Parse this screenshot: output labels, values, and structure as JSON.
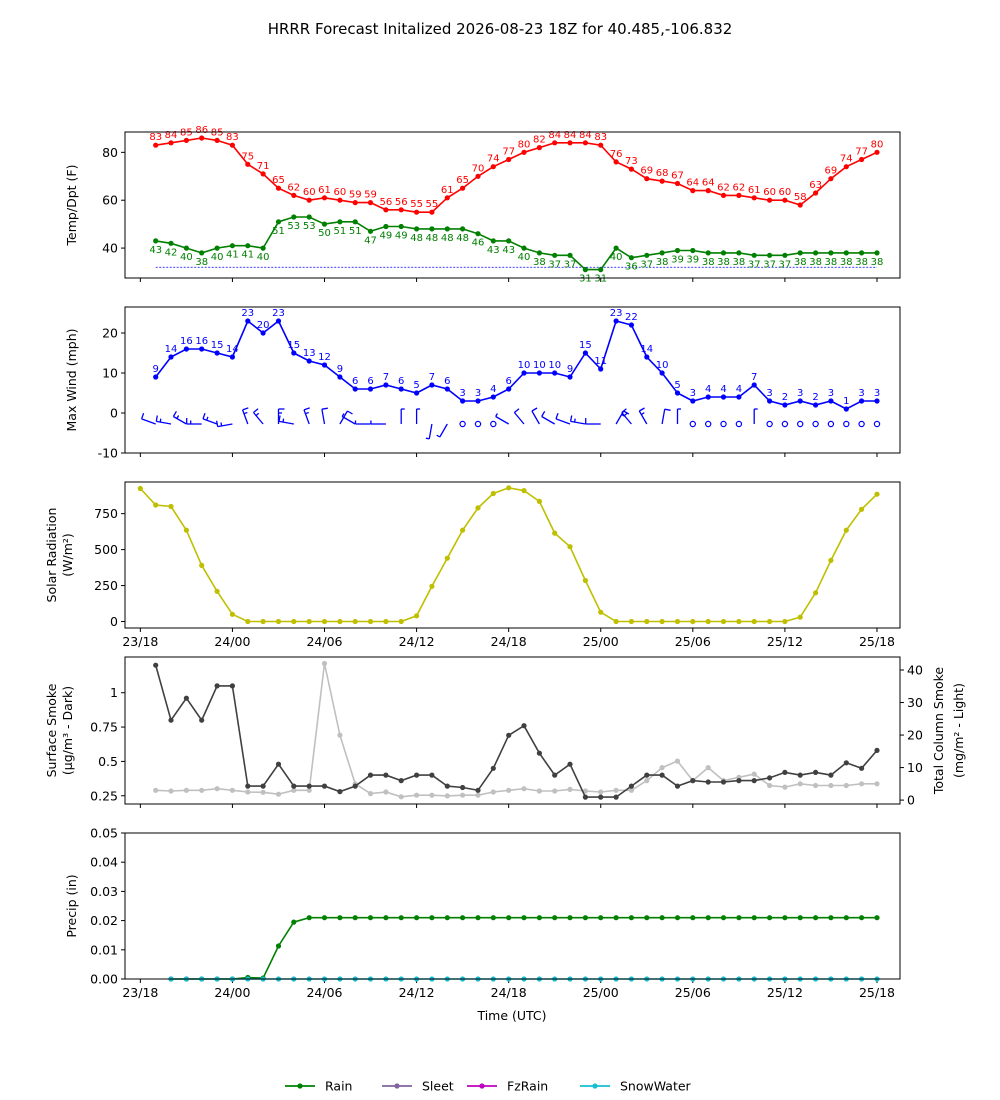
{
  "title": "HRRR Forecast Initalized 2026-08-23 18Z for 40.485,-106.832",
  "x_tick_labels": [
    "23/18",
    "24/00",
    "24/06",
    "24/12",
    "24/18",
    "25/00",
    "25/06",
    "25/12",
    "25/18"
  ],
  "x_axis_label": "Time (UTC)",
  "legend": [
    {
      "label": "Rain",
      "color": "#008000"
    },
    {
      "label": "Sleet",
      "color": "#8064a0"
    },
    {
      "label": "FzRain",
      "color": "#c000c0"
    },
    {
      "label": "SnowWater",
      "color": "#17becf"
    }
  ],
  "chart_data": [
    {
      "type": "line",
      "ylabel": "Temp/Dpt (F)",
      "x_hours": [
        1,
        2,
        3,
        4,
        5,
        6,
        7,
        8,
        9,
        10,
        11,
        12,
        13,
        14,
        15,
        16,
        17,
        18,
        19,
        20,
        21,
        22,
        23,
        24,
        25,
        26,
        27,
        28,
        29,
        30,
        31,
        32,
        33,
        34,
        35,
        36,
        37,
        38,
        39,
        40,
        41,
        42,
        43,
        44,
        45,
        46,
        47,
        48
      ],
      "ylim": [
        27.5,
        88.5
      ],
      "yticks": [
        40,
        60,
        80
      ],
      "reference_line": 32,
      "series": [
        {
          "color": "#ff0000",
          "values": [
            83,
            84,
            85,
            86,
            85,
            83,
            75,
            71,
            65,
            62,
            60,
            61,
            60,
            59,
            59,
            56,
            56,
            55,
            55,
            61,
            65,
            70,
            74,
            77,
            80,
            82,
            84,
            84,
            84,
            83,
            76,
            73,
            69,
            68,
            67,
            64,
            64,
            62,
            62,
            61,
            60,
            60,
            58,
            63,
            69,
            74,
            77,
            80
          ],
          "labels": [
            "83",
            "84",
            "85",
            "86",
            "85",
            "83",
            "75",
            "71",
            "65",
            "62",
            "60",
            "61",
            "60",
            "59",
            "59",
            "56",
            "56",
            "55",
            "55",
            "61",
            "65",
            "70",
            "74",
            "77",
            "80",
            "82",
            "84",
            "84",
            "84",
            "83",
            "76",
            "73",
            "69",
            "68",
            "67",
            "64",
            "64",
            "62",
            "62",
            "61",
            "60",
            "60",
            "58",
            "63",
            "69",
            "74",
            "77",
            "80"
          ]
        },
        {
          "color": "#008000",
          "values": [
            43,
            42,
            40,
            38,
            40,
            41,
            41,
            40,
            51,
            53,
            53,
            50,
            51,
            51,
            47,
            49,
            49,
            48,
            48,
            48,
            48,
            46,
            43,
            43,
            40,
            38,
            37,
            37,
            31,
            31,
            40,
            36,
            37,
            38,
            39,
            39,
            38,
            38,
            38,
            37,
            37,
            37,
            38,
            38,
            38,
            38,
            38,
            38
          ],
          "labels": [
            "43",
            "42",
            "40",
            "38",
            "40",
            "41",
            "41",
            "40",
            "51",
            "53",
            "53",
            "50",
            "51",
            "51",
            "47",
            "49",
            "49",
            "48",
            "48",
            "48",
            "48",
            "46",
            "43",
            "43",
            "40",
            "38",
            "37",
            "37",
            "31",
            "31",
            "40",
            "36",
            "37",
            "38",
            "39",
            "39",
            "38",
            "38",
            "38",
            "37",
            "37",
            "37",
            "38",
            "38",
            "38",
            "38",
            "38",
            "38"
          ]
        }
      ]
    },
    {
      "type": "line",
      "ylabel": "Max Wind (mph)",
      "x_hours": [
        1,
        2,
        3,
        4,
        5,
        6,
        7,
        8,
        9,
        10,
        11,
        12,
        13,
        14,
        15,
        16,
        17,
        18,
        19,
        20,
        21,
        22,
        23,
        24,
        25,
        26,
        27,
        28,
        29,
        30,
        31,
        32,
        33,
        34,
        35,
        36,
        37,
        38,
        39,
        40,
        41,
        42,
        43,
        44,
        45,
        46,
        47,
        48
      ],
      "ylim": [
        -10,
        26.5
      ],
      "yticks": [
        -10,
        0,
        10,
        20
      ],
      "series": [
        {
          "color": "#0000ff",
          "values": [
            9,
            14,
            16,
            16,
            15,
            14,
            23,
            20,
            23,
            15,
            13,
            12,
            9,
            6,
            6,
            7,
            6,
            5,
            7,
            6,
            3,
            3,
            4,
            6,
            10,
            10,
            10,
            9,
            15,
            11,
            23,
            22,
            14,
            10,
            5,
            3,
            4,
            4,
            4,
            7,
            3,
            2,
            3,
            2,
            3,
            1,
            3,
            3
          ],
          "labels": [
            "9",
            "14",
            "16",
            "16",
            "15",
            "14",
            "23",
            "20",
            "23",
            "15",
            "13",
            "12",
            "9",
            "6",
            "6",
            "7",
            "6",
            "5",
            "7",
            "6",
            "3",
            "3",
            "4",
            "6",
            "10",
            "10",
            "10",
            "9",
            "15",
            "11",
            "23",
            "22",
            "14",
            "10",
            "5",
            "3",
            "4",
            "4",
            "4",
            "7",
            "3",
            "2",
            "3",
            "2",
            "3",
            "1",
            "3",
            "3"
          ]
        }
      ],
      "barb_dir_deg": [
        290,
        280,
        300,
        270,
        290,
        260,
        340,
        320,
        0,
        280,
        340,
        350,
        30,
        300,
        270,
        270,
        0,
        0,
        190,
        210,
        0,
        0,
        310,
        300,
        320,
        330,
        300,
        290,
        280,
        270,
        30,
        320,
        330,
        10,
        0,
        0,
        0,
        0,
        50,
        0,
        0,
        0,
        0,
        0,
        0,
        0,
        300,
        290
      ]
    },
    {
      "type": "line",
      "ylabel": "Solar Radiation",
      "ylabel_line2": "(W/m²)",
      "x_hours": [
        0,
        1,
        2,
        3,
        4,
        5,
        6,
        7,
        8,
        9,
        10,
        11,
        12,
        13,
        14,
        15,
        16,
        17,
        18,
        19,
        20,
        21,
        22,
        23,
        24,
        25,
        26,
        27,
        28,
        29,
        30,
        31,
        32,
        33,
        34,
        35,
        36,
        37,
        38,
        39,
        40,
        41,
        42,
        43,
        44,
        45,
        46,
        47,
        48
      ],
      "ylim": [
        -45,
        970
      ],
      "yticks": [
        0,
        250,
        500,
        750
      ],
      "series": [
        {
          "color": "#bfbf00",
          "values": [
            925,
            810,
            800,
            635,
            390,
            210,
            50,
            0,
            0,
            0,
            0,
            0,
            0,
            0,
            0,
            0,
            0,
            0,
            40,
            245,
            440,
            635,
            790,
            890,
            930,
            910,
            835,
            615,
            520,
            285,
            65,
            0,
            0,
            0,
            0,
            0,
            0,
            0,
            0,
            0,
            0,
            0,
            0,
            30,
            200,
            425,
            635,
            780,
            885
          ]
        }
      ]
    },
    {
      "type": "line",
      "ylabel": "Surface Smoke",
      "ylabel_line2": "(μg/m³ - Dark)",
      "ylabel_right": "Total Column Smoke",
      "ylabel_right_line2": "(mg/m² - Light)",
      "x_hours": [
        1,
        2,
        3,
        4,
        5,
        6,
        7,
        8,
        9,
        10,
        11,
        12,
        13,
        14,
        15,
        16,
        17,
        18,
        19,
        20,
        21,
        22,
        23,
        24,
        25,
        26,
        27,
        28,
        29,
        30,
        31,
        32,
        33,
        34,
        35,
        36,
        37,
        38,
        39,
        40,
        41,
        42,
        43,
        44,
        45,
        46,
        47,
        48
      ],
      "ylim": [
        0.19,
        1.26
      ],
      "yticks": [
        0.25,
        0.5,
        0.75,
        1.0
      ],
      "ylim_right": [
        -1.2,
        44
      ],
      "yticks_right": [
        0,
        10,
        20,
        30,
        40
      ],
      "series": [
        {
          "color": "#404040",
          "axis": "left",
          "values": [
            1.2,
            0.8,
            0.96,
            0.8,
            1.05,
            1.05,
            0.32,
            0.32,
            0.48,
            0.32,
            0.32,
            0.32,
            0.28,
            0.32,
            0.4,
            0.4,
            0.36,
            0.4,
            0.4,
            0.32,
            0.31,
            0.29,
            0.45,
            0.69,
            0.76,
            0.56,
            0.4,
            0.48,
            0.24,
            0.24,
            0.24,
            0.32,
            0.4,
            0.4,
            0.32,
            0.36,
            0.35,
            0.35,
            0.36,
            0.36,
            0.38,
            0.42,
            0.4,
            0.42,
            0.4,
            0.49,
            0.45,
            0.58
          ]
        },
        {
          "color": "#c0c0c0",
          "axis": "right",
          "values": [
            3,
            2.8,
            3,
            3,
            3.5,
            3,
            2.5,
            2.4,
            1.8,
            3,
            3,
            42,
            20,
            5,
            2,
            2.5,
            1,
            1.5,
            1.5,
            1.3,
            1.5,
            1.5,
            2.5,
            3,
            3.5,
            2.8,
            2.8,
            3.3,
            2.8,
            2.5,
            3,
            3,
            6,
            10,
            12,
            6,
            10,
            6,
            7,
            8,
            4.5,
            4,
            5,
            4.5,
            4.5,
            4.5,
            5,
            5
          ]
        }
      ]
    },
    {
      "type": "line",
      "ylabel": "Precip (in)",
      "x_hours": [
        2,
        3,
        4,
        5,
        6,
        7,
        8,
        9,
        10,
        11,
        12,
        13,
        14,
        15,
        16,
        17,
        18,
        19,
        20,
        21,
        22,
        23,
        24,
        25,
        26,
        27,
        28,
        29,
        30,
        31,
        32,
        33,
        34,
        35,
        36,
        37,
        38,
        39,
        40,
        41,
        42,
        43,
        44,
        45,
        46,
        47,
        48
      ],
      "ylim": [
        0,
        0.05
      ],
      "yticks": [
        0.0,
        0.01,
        0.02,
        0.03,
        0.04,
        0.05
      ],
      "ytick_labels": [
        "0.00",
        "0.01",
        "0.02",
        "0.03",
        "0.04",
        "0.05"
      ],
      "series": [
        {
          "name": "Rain",
          "color": "#008000",
          "values": [
            0,
            0,
            0,
            0,
            0,
            0.0005,
            0.0003,
            0.0113,
            0.0195,
            0.021,
            0.021,
            0.021,
            0.021,
            0.021,
            0.021,
            0.021,
            0.021,
            0.021,
            0.021,
            0.021,
            0.021,
            0.021,
            0.021,
            0.021,
            0.021,
            0.021,
            0.021,
            0.021,
            0.021,
            0.021,
            0.021,
            0.021,
            0.021,
            0.021,
            0.021,
            0.021,
            0.021,
            0.021,
            0.021,
            0.021,
            0.021,
            0.021,
            0.021,
            0.021,
            0.021,
            0.021,
            0.021
          ]
        },
        {
          "name": "SnowWater",
          "color": "#17becf",
          "values": [
            0,
            0,
            0,
            0,
            0,
            0,
            0,
            0,
            0,
            0,
            0,
            0,
            0,
            0,
            0,
            0,
            0,
            0,
            0,
            0,
            0,
            0,
            0,
            0,
            0,
            0,
            0,
            0,
            0,
            0,
            0,
            0,
            0,
            0,
            0,
            0,
            0,
            0,
            0,
            0,
            0,
            0,
            0,
            0,
            0,
            0,
            0
          ]
        }
      ]
    }
  ]
}
